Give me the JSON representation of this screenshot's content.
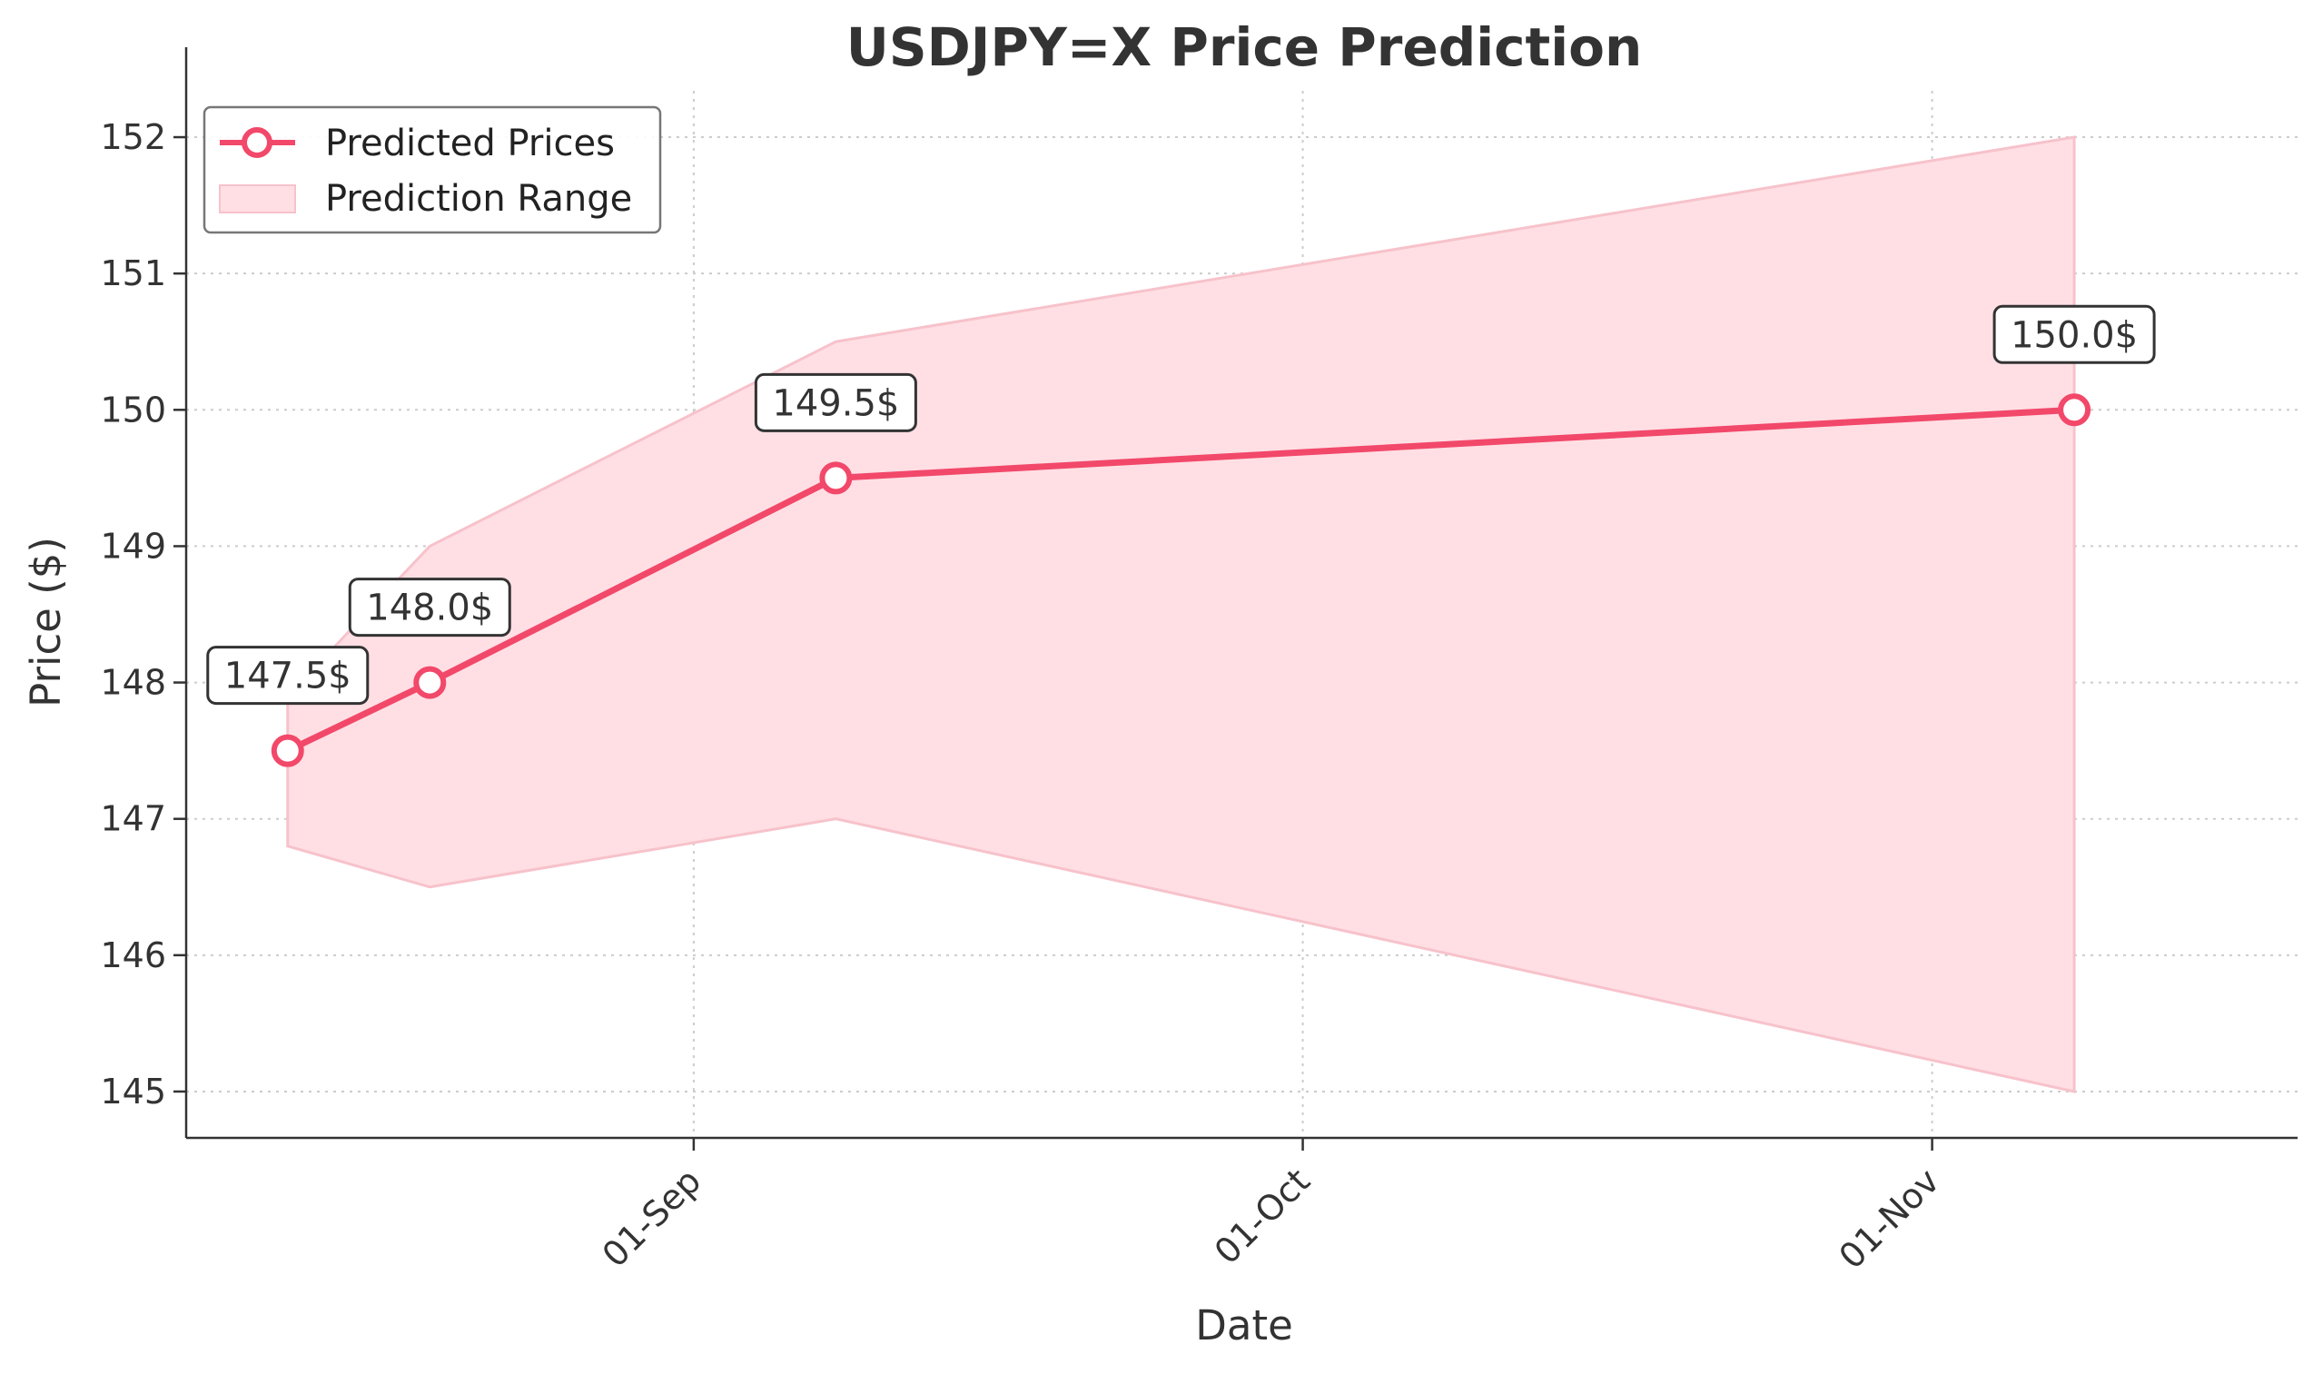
{
  "chart_data": {
    "type": "line",
    "title": "USDJPY=X Price Prediction",
    "xlabel": "Date",
    "ylabel": "Price ($)",
    "x": [
      "2024-08-12",
      "2024-08-19",
      "2024-09-08",
      "2024-11-08"
    ],
    "series": [
      {
        "name": "Predicted Prices",
        "values": [
          147.5,
          148.0,
          149.5,
          150.0
        ],
        "data_labels": [
          "147.5$",
          "148.0$",
          "149.5$",
          "150.0$"
        ]
      }
    ],
    "range": {
      "name": "Prediction Range",
      "lower": [
        146.8,
        146.5,
        147.0,
        145.0
      ],
      "upper": [
        147.9,
        149.0,
        150.5,
        152.0
      ]
    },
    "xticks": [
      {
        "date": "2024-09-01",
        "label": "01-Sep"
      },
      {
        "date": "2024-10-01",
        "label": "01-Oct"
      },
      {
        "date": "2024-11-01",
        "label": "01-Nov"
      }
    ],
    "xlim": [
      "2024-08-07",
      "2024-11-19"
    ],
    "yticks": [
      145,
      146,
      147,
      148,
      149,
      150,
      151,
      152
    ],
    "ylim": [
      144.66,
      152.34
    ],
    "grid": true,
    "legend_position": "top-left",
    "colors": {
      "line": "#f2486a",
      "band_fill": "#ffdfe4",
      "band_edge": "#f7c2cb",
      "text": "#333333"
    }
  }
}
